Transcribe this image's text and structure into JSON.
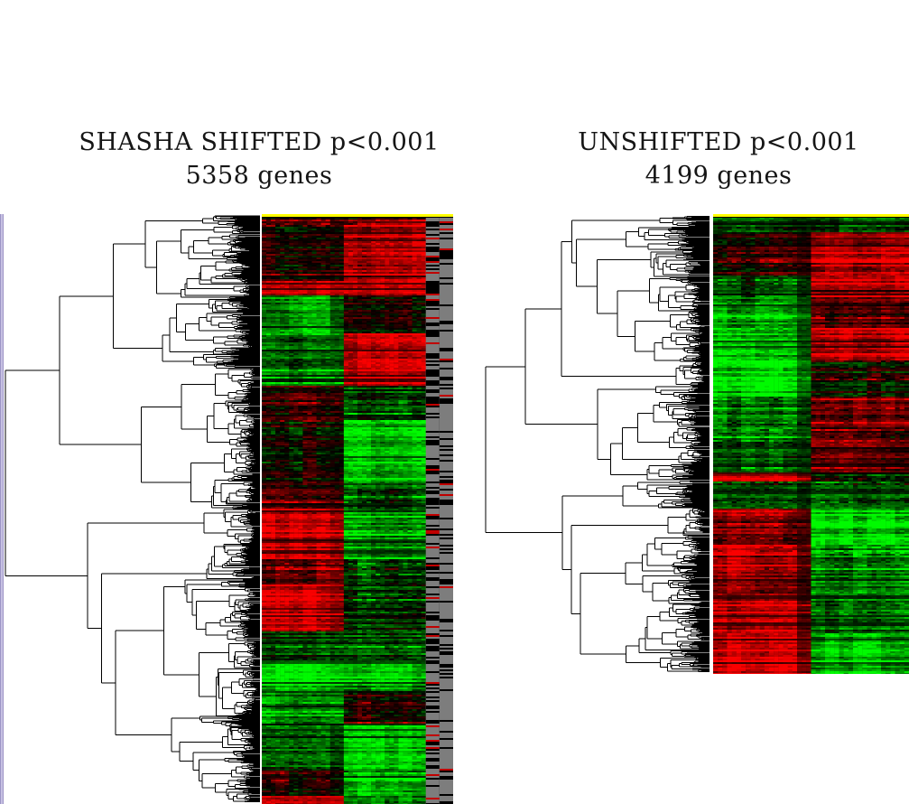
{
  "page": {
    "background": "#ffffff",
    "window_edge_color": "#b9b2d9"
  },
  "chart_data": [
    {
      "type": "heatmap",
      "title": "SHASHA SHIFTED p<0.001",
      "subtitle": "5358 genes",
      "n_genes": 5358,
      "p_threshold": "p<0.001",
      "n_columns": 14,
      "column_groups": {
        "A": [
          0,
          5
        ],
        "B": [
          6,
          11
        ],
        "missing": [
          12,
          13
        ]
      },
      "row_dendrogram": {
        "orientation": "leaves-right",
        "color": "#000000",
        "root_split_fraction": 0.5
      },
      "marker_row_color": "#ffff00",
      "color_scale": {
        "up": "#ff0000",
        "mid": "#000000",
        "down": "#00ff00",
        "missing": "#7d7d7d"
      },
      "row_bands_format": "[row_start_frac, row_end_frac, groupA_value, groupB_value]; value scale -3 (bright green) .. 0 (black) .. +3 (bright red)",
      "row_bands": [
        [
          0.0,
          0.012,
          0.2,
          0.6
        ],
        [
          0.012,
          0.105,
          0.5,
          2.1
        ],
        [
          0.105,
          0.132,
          2.8,
          2.8
        ],
        [
          0.132,
          0.195,
          -1.8,
          0.3
        ],
        [
          0.195,
          0.285,
          -1.5,
          2.4
        ],
        [
          0.285,
          0.345,
          0.8,
          -1.0
        ],
        [
          0.345,
          0.45,
          0.2,
          -2.2
        ],
        [
          0.45,
          0.495,
          0.4,
          -1.2
        ],
        [
          0.495,
          0.58,
          2.2,
          -1.8
        ],
        [
          0.58,
          0.625,
          1.0,
          -0.8
        ],
        [
          0.625,
          0.705,
          2.7,
          -0.9
        ],
        [
          0.705,
          0.755,
          -0.6,
          -0.9
        ],
        [
          0.755,
          0.805,
          -2.6,
          -1.8
        ],
        [
          0.805,
          0.86,
          -1.6,
          0.6
        ],
        [
          0.86,
          0.94,
          -1.2,
          -2.1
        ],
        [
          0.94,
          0.985,
          0.3,
          -2.3
        ],
        [
          0.985,
          1.0,
          2.8,
          -1.6
        ]
      ]
    },
    {
      "type": "heatmap",
      "title": "UNSHIFTED p<0.001",
      "subtitle": "4199 genes",
      "n_genes": 4199,
      "p_threshold": "p<0.001",
      "n_columns": 14,
      "column_groups": {
        "A": [
          0,
          6
        ],
        "B": [
          7,
          13
        ]
      },
      "row_dendrogram": {
        "orientation": "leaves-right",
        "color": "#000000",
        "root_split_fraction": 0.58
      },
      "marker_row_color": "#ffff00",
      "color_scale": {
        "up": "#ff0000",
        "mid": "#000000",
        "down": "#00ff00"
      },
      "row_bands_format": "[row_start_frac, row_end_frac, groupA_value, groupB_value]; value scale -3 (bright green) .. 0 (black) .. +3 (bright red)",
      "row_bands": [
        [
          0.0,
          0.03,
          -0.8,
          -0.6
        ],
        [
          0.03,
          0.125,
          0.6,
          2.3
        ],
        [
          0.125,
          0.185,
          -1.2,
          1.8
        ],
        [
          0.185,
          0.24,
          -1.8,
          0.8
        ],
        [
          0.24,
          0.31,
          -2.2,
          2.6
        ],
        [
          0.31,
          0.39,
          -2.6,
          0.2
        ],
        [
          0.39,
          0.46,
          -1.6,
          1.0
        ],
        [
          0.46,
          0.555,
          -1.0,
          1.2
        ],
        [
          0.555,
          0.575,
          2.6,
          -0.4
        ],
        [
          0.575,
          0.635,
          -0.9,
          -0.9
        ],
        [
          0.635,
          0.715,
          1.2,
          -2.4
        ],
        [
          0.715,
          0.82,
          1.9,
          -1.3
        ],
        [
          0.82,
          0.91,
          2.4,
          -1.1
        ],
        [
          0.91,
          1.0,
          2.7,
          -2.2
        ]
      ]
    }
  ]
}
